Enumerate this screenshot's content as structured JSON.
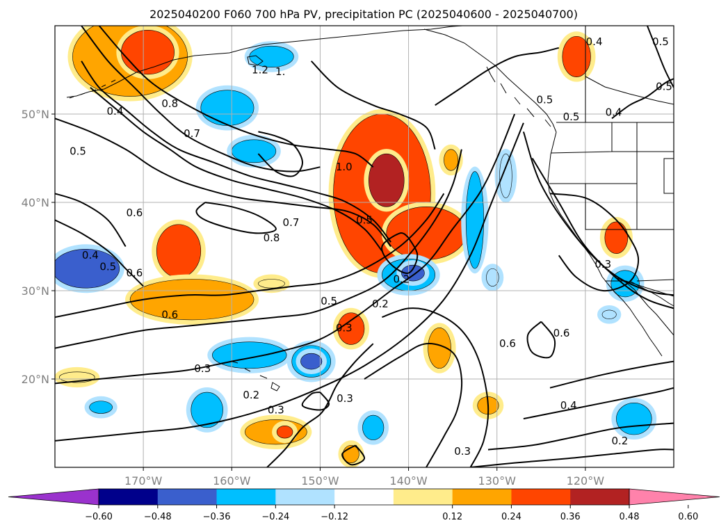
{
  "title": "2025040200 F060 700 hPa PV, precipitation PC (2025040600 - 2025040700)",
  "lon_range": [
    -180,
    -110
  ],
  "lat_range": [
    10,
    60
  ],
  "x_ticks": [
    {
      "lon": -170,
      "label": "170°W"
    },
    {
      "lon": -160,
      "label": "160°W"
    },
    {
      "lon": -150,
      "label": "150°W"
    },
    {
      "lon": -140,
      "label": "140°W"
    },
    {
      "lon": -130,
      "label": "130°W"
    },
    {
      "lon": -120,
      "label": "120°W"
    }
  ],
  "y_ticks": [
    {
      "lat": 50,
      "label": "50°N"
    },
    {
      "lat": 40,
      "label": "40°N"
    },
    {
      "lat": 30,
      "label": "30°N"
    },
    {
      "lat": 20,
      "label": "20°N"
    }
  ],
  "colorbar": {
    "boundaries": [
      -0.72,
      -0.6,
      -0.48,
      -0.36,
      -0.24,
      -0.12,
      0.12,
      0.24,
      0.36,
      0.48,
      0.6,
      0.72
    ],
    "colors": [
      "#9a32cd",
      "#00008b",
      "#3a5fcd",
      "#00bfff",
      "#b0e2ff",
      "#ffffff",
      "#ffec8b",
      "#ffa500",
      "#ff4500",
      "#b22222",
      "#ff82ab"
    ],
    "tick_labels": [
      "−0.60",
      "−0.48",
      "−0.36",
      "−0.24",
      "−0.12",
      "0.12",
      "0.24",
      "0.36",
      "0.48",
      "0.60"
    ],
    "extend": "both"
  },
  "shaded_regions": [
    {
      "lon": -171.5,
      "lat": 56.5,
      "rx": 6.5,
      "ry": 4.5,
      "value": 0.3
    },
    {
      "lon": -169.5,
      "lat": 57.0,
      "rx": 3.0,
      "ry": 2.5,
      "value": 0.4
    },
    {
      "lon": -160.5,
      "lat": 50.7,
      "rx": 3.0,
      "ry": 2.0,
      "value": -0.3
    },
    {
      "lon": -155.5,
      "lat": 56.5,
      "rx": 2.5,
      "ry": 1.2,
      "value": -0.3
    },
    {
      "lon": -157.5,
      "lat": 45.8,
      "rx": 2.5,
      "ry": 1.3,
      "value": -0.3
    },
    {
      "lon": -143.0,
      "lat": 41.0,
      "rx": 5.5,
      "ry": 9.0,
      "value": 0.42
    },
    {
      "lon": -142.5,
      "lat": 42.5,
      "rx": 2.0,
      "ry": 3.0,
      "value": 0.54
    },
    {
      "lon": -138.0,
      "lat": 36.5,
      "rx": 4.5,
      "ry": 3.0,
      "value": 0.42
    },
    {
      "lon": -135.2,
      "lat": 44.8,
      "rx": 0.8,
      "ry": 1.2,
      "value": 0.3
    },
    {
      "lon": -132.5,
      "lat": 38.0,
      "rx": 1.0,
      "ry": 5.5,
      "value": -0.3
    },
    {
      "lon": -129.0,
      "lat": 43.0,
      "rx": 0.7,
      "ry": 2.5,
      "value": -0.2
    },
    {
      "lon": -140.0,
      "lat": 31.8,
      "rx": 3.0,
      "ry": 1.8,
      "value": -0.3
    },
    {
      "lon": -139.5,
      "lat": 32.0,
      "rx": 1.3,
      "ry": 0.9,
      "value": -0.42
    },
    {
      "lon": -130.5,
      "lat": 31.5,
      "rx": 0.7,
      "ry": 1.0,
      "value": -0.2
    },
    {
      "lon": -121.0,
      "lat": 56.5,
      "rx": 1.6,
      "ry": 2.3,
      "value": 0.38
    },
    {
      "lon": -116.5,
      "lat": 36.0,
      "rx": 1.3,
      "ry": 1.8,
      "value": 0.38
    },
    {
      "lon": -115.5,
      "lat": 30.8,
      "rx": 1.6,
      "ry": 1.5,
      "value": -0.3
    },
    {
      "lon": -117.3,
      "lat": 27.3,
      "rx": 0.8,
      "ry": 0.5,
      "value": -0.2
    },
    {
      "lon": -176.5,
      "lat": 32.5,
      "rx": 3.8,
      "ry": 2.2,
      "value": -0.38
    },
    {
      "lon": -166.0,
      "lat": 34.5,
      "rx": 2.5,
      "ry": 3.0,
      "value": 0.38
    },
    {
      "lon": -164.5,
      "lat": 29.0,
      "rx": 7.0,
      "ry": 2.3,
      "value": 0.3
    },
    {
      "lon": -155.5,
      "lat": 30.8,
      "rx": 1.5,
      "ry": 0.5,
      "value": 0.2
    },
    {
      "lon": -158.0,
      "lat": 22.7,
      "rx": 4.2,
      "ry": 1.5,
      "value": -0.3
    },
    {
      "lon": -151.0,
      "lat": 22.0,
      "rx": 2.2,
      "ry": 1.8,
      "value": -0.3
    },
    {
      "lon": -151.0,
      "lat": 22.0,
      "rx": 1.2,
      "ry": 0.9,
      "value": -0.42
    },
    {
      "lon": -146.5,
      "lat": 25.7,
      "rx": 1.5,
      "ry": 1.8,
      "value": 0.36
    },
    {
      "lon": -136.5,
      "lat": 23.5,
      "rx": 1.3,
      "ry": 2.3,
      "value": 0.3
    },
    {
      "lon": -131.0,
      "lat": 17.0,
      "rx": 1.2,
      "ry": 1.0,
      "value": 0.3
    },
    {
      "lon": -177.5,
      "lat": 20.2,
      "rx": 2.0,
      "ry": 0.6,
      "value": 0.2
    },
    {
      "lon": -174.8,
      "lat": 16.8,
      "rx": 1.3,
      "ry": 0.7,
      "value": -0.3
    },
    {
      "lon": -162.8,
      "lat": 16.5,
      "rx": 1.8,
      "ry": 2.0,
      "value": -0.3
    },
    {
      "lon": -155.0,
      "lat": 14.0,
      "rx": 3.5,
      "ry": 1.4,
      "value": 0.3
    },
    {
      "lon": -154.0,
      "lat": 14.0,
      "rx": 0.9,
      "ry": 0.7,
      "value": 0.42
    },
    {
      "lon": -146.5,
      "lat": 11.5,
      "rx": 0.9,
      "ry": 1.0,
      "value": 0.3
    },
    {
      "lon": -144.0,
      "lat": 14.5,
      "rx": 1.2,
      "ry": 1.4,
      "value": -0.3
    },
    {
      "lon": -114.5,
      "lat": 15.5,
      "rx": 2.0,
      "ry": 1.8,
      "value": -0.3
    }
  ],
  "contours": [
    {
      "lons": [
        -177,
        -174,
        -171,
        -168,
        -165,
        -161,
        -157,
        -153,
        -150
      ],
      "lats": [
        60,
        56,
        53,
        50,
        47.5,
        45.5,
        44,
        43.5,
        44
      ],
      "level": "1.0"
    },
    {
      "lons": [
        -175,
        -172,
        -169,
        -165,
        -161,
        -157,
        -153,
        -149,
        -146,
        -144
      ],
      "lats": [
        60,
        56.5,
        53.5,
        51,
        49,
        47.5,
        46.5,
        46,
        45.5,
        44
      ],
      "level": "1.2"
    },
    {
      "lons": [
        -180,
        -176,
        -172,
        -169,
        -166,
        -163,
        -159,
        -155,
        -151,
        -147,
        -144,
        -142
      ],
      "lats": [
        49.5,
        48,
        46,
        44,
        42.5,
        41.5,
        40.5,
        40,
        39.5,
        39,
        37.5,
        35
      ],
      "level": "0.6"
    },
    {
      "lons": [
        -176,
        -173,
        -170,
        -167,
        -164,
        -160,
        -156,
        -152,
        -148,
        -145,
        -143
      ],
      "lats": [
        53,
        50.5,
        48,
        46,
        44,
        42.5,
        41.5,
        40.5,
        39,
        37,
        34.5
      ],
      "level": "0.7"
    },
    {
      "lons": [
        -177,
        -175,
        -172,
        -169,
        -166,
        -162,
        -158,
        -154,
        -150,
        -147,
        -144,
        -142
      ],
      "lats": [
        56,
        53,
        50.5,
        48,
        46,
        44.5,
        43,
        42,
        41,
        40,
        38,
        35.5
      ],
      "level": "0.8"
    },
    {
      "lons": [
        -163,
        -160,
        -157,
        -155,
        -157,
        -160,
        -163,
        -164,
        -163
      ],
      "lats": [
        40,
        39.5,
        38.5,
        37,
        36.5,
        37,
        38,
        39,
        40
      ],
      "level": "0.8"
    },
    {
      "lons": [
        -180,
        -175,
        -170,
        -165,
        -161,
        -157,
        -153,
        -149,
        -145,
        -141,
        -138,
        -136
      ],
      "lats": [
        27,
        28,
        29,
        29.5,
        29.5,
        30,
        30.5,
        31,
        32.5,
        35,
        38,
        41
      ],
      "level": "0.5"
    },
    {
      "lons": [
        -180,
        -175,
        -170,
        -165,
        -160,
        -155,
        -151,
        -147,
        -143,
        -140,
        -137,
        -135,
        -134
      ],
      "lats": [
        23.5,
        24.5,
        25.5,
        26,
        26.5,
        27,
        27.5,
        29,
        31,
        34,
        38,
        42,
        46
      ],
      "level": "0.3"
    },
    {
      "lons": [
        -180,
        -175,
        -170,
        -165,
        -160,
        -155,
        -150,
        -146,
        -142,
        -138,
        -135,
        -132,
        -130,
        -128
      ],
      "lats": [
        19.5,
        20,
        20.5,
        21,
        22,
        23,
        24.5,
        27,
        30,
        33,
        37,
        41,
        45,
        50
      ],
      "level": "0.2"
    },
    {
      "lons": [
        -180,
        -175,
        -170,
        -165,
        -160,
        -155,
        -150,
        -145,
        -140,
        -136,
        -133,
        -131,
        -129,
        -127
      ],
      "lats": [
        13,
        13.5,
        14,
        14.5,
        15.5,
        17,
        19,
        21.5,
        25,
        29,
        34,
        39,
        44,
        49
      ],
      "level": ""
    },
    {
      "lons": [
        -156,
        -154,
        -152,
        -150,
        -149,
        -148,
        -146,
        -144
      ],
      "lats": [
        10,
        12,
        14.5,
        16,
        17.5,
        19.5,
        22,
        24
      ],
      "level": "0.3"
    },
    {
      "lons": [
        -145,
        -141,
        -138,
        -135,
        -134,
        -134.5,
        -136,
        -138
      ],
      "lats": [
        20,
        22.5,
        24,
        23,
        20,
        16.5,
        13.5,
        10
      ],
      "level": ""
    },
    {
      "lons": [
        -143,
        -140,
        -137,
        -134,
        -132,
        -131,
        -131.5,
        -133
      ],
      "lats": [
        27,
        28,
        27.5,
        25.5,
        22,
        17,
        13,
        10
      ],
      "level": "0.2"
    },
    {
      "lons": [
        -124,
        -118,
        -113,
        -110
      ],
      "lats": [
        19,
        20.5,
        21.5,
        22
      ],
      "level": "0.6"
    },
    {
      "lons": [
        -127,
        -122,
        -117,
        -112,
        -110
      ],
      "lats": [
        15.5,
        16.5,
        17.5,
        18.5,
        19
      ],
      "level": "0.4"
    },
    {
      "lons": [
        -131,
        -126,
        -121,
        -116,
        -110
      ],
      "lats": [
        12,
        12.5,
        13.5,
        14.5,
        15
      ],
      "level": "0.2"
    },
    {
      "lons": [
        -133,
        -128,
        -122,
        -117,
        -112,
        -110
      ],
      "lats": [
        10,
        10.5,
        11,
        11.5,
        12,
        12
      ],
      "level": "0.3"
    },
    {
      "lons": [
        -124,
        -120,
        -117,
        -115,
        -114,
        -115,
        -118,
        -121,
        -123
      ],
      "lats": [
        41,
        40.5,
        38.5,
        36,
        33.5,
        31,
        30,
        31.5,
        34
      ],
      "level": "0.3"
    },
    {
      "lons": [
        -126,
        -123,
        -120,
        -116,
        -113,
        -110
      ],
      "lats": [
        45,
        40,
        35,
        31,
        29,
        28
      ],
      "level": ""
    },
    {
      "lons": [
        -127,
        -125,
        -121,
        -117,
        -113,
        -110
      ],
      "lats": [
        48,
        42,
        36,
        32,
        30,
        29.5
      ],
      "level": "0.6"
    },
    {
      "lons": [
        -151,
        -148,
        -144,
        -141,
        -138,
        -137
      ],
      "lats": [
        56,
        53,
        51,
        50,
        48.5,
        46
      ],
      "level": ""
    },
    {
      "lons": [
        -137,
        -134,
        -131,
        -128,
        -125,
        -123
      ],
      "lats": [
        51,
        53,
        55,
        56.5,
        57,
        57.5
      ],
      "level": "0.5"
    },
    {
      "lons": [
        -117,
        -115,
        -113,
        -111,
        -110
      ],
      "lats": [
        49.5,
        51,
        52,
        53.5,
        54
      ],
      "level": "0.4"
    },
    {
      "lons": [
        -113,
        -112,
        -111,
        -110
      ],
      "lats": [
        60,
        57.5,
        55,
        53
      ],
      "level": "0.5"
    },
    {
      "lons": [
        -180,
        -177,
        -174,
        -172
      ],
      "lats": [
        41,
        40,
        38,
        35
      ],
      "level": "0.4"
    },
    {
      "lons": [
        -180,
        -177,
        -174,
        -172,
        -170
      ],
      "lats": [
        38,
        36.5,
        34.5,
        32.5,
        30.5
      ],
      "level": "0.5"
    },
    {
      "lons": [
        -157,
        -155,
        -153,
        -152,
        -153,
        -155,
        -157
      ],
      "lats": [
        48,
        47.5,
        46.5,
        44.5,
        43,
        43.5,
        45.5
      ],
      "level": ""
    },
    {
      "lons": [
        -140,
        -139,
        -140,
        -142,
        -143,
        -141,
        -140
      ],
      "lats": [
        36,
        34,
        32,
        33,
        35,
        36.5,
        36
      ],
      "level": "0.2"
    },
    {
      "lons": [
        -150,
        -149,
        -150,
        -152,
        -151,
        -150
      ],
      "lats": [
        18.5,
        17.2,
        16.5,
        17,
        18.3,
        18.5
      ],
      "level": ""
    },
    {
      "lons": [
        -146,
        -145,
        -146.5,
        -147.5,
        -146
      ],
      "lats": [
        12.5,
        11,
        10.3,
        11.5,
        12.5
      ],
      "level": ""
    },
    {
      "lons": [
        -125,
        -123.5,
        -124,
        -126,
        -126.5,
        -125
      ],
      "lats": [
        26.5,
        24.5,
        22.5,
        23,
        25,
        26.5
      ],
      "level": "0.6"
    }
  ],
  "contour_labels": [
    {
      "lon": -156.8,
      "lat": 55.0,
      "text": "1.2"
    },
    {
      "lon": -154.5,
      "lat": 54.8,
      "text": "1."
    },
    {
      "lon": -173.2,
      "lat": 50.3,
      "text": "0.4"
    },
    {
      "lon": -167.0,
      "lat": 51.2,
      "text": "0.8"
    },
    {
      "lon": -164.5,
      "lat": 47.8,
      "text": "0.7"
    },
    {
      "lon": -177.4,
      "lat": 45.8,
      "text": "0.5"
    },
    {
      "lon": -147.3,
      "lat": 44.0,
      "text": "1.0"
    },
    {
      "lon": -171.0,
      "lat": 38.8,
      "text": "0.6"
    },
    {
      "lon": -145.0,
      "lat": 38.0,
      "text": "0.5"
    },
    {
      "lon": -153.3,
      "lat": 37.7,
      "text": "0.7"
    },
    {
      "lon": -155.5,
      "lat": 36.0,
      "text": "0.8"
    },
    {
      "lon": -176.0,
      "lat": 34.0,
      "text": "0.4"
    },
    {
      "lon": -174.0,
      "lat": 32.7,
      "text": "0.5"
    },
    {
      "lon": -171.0,
      "lat": 32.0,
      "text": "0.6"
    },
    {
      "lon": -149.0,
      "lat": 28.8,
      "text": "0.5"
    },
    {
      "lon": -167.0,
      "lat": 27.3,
      "text": "0.6"
    },
    {
      "lon": -147.3,
      "lat": 25.8,
      "text": "0.3"
    },
    {
      "lon": -140.8,
      "lat": 31.3,
      "text": "0.2"
    },
    {
      "lon": -143.2,
      "lat": 28.5,
      "text": "0.2"
    },
    {
      "lon": -128.8,
      "lat": 24.0,
      "text": "0.6"
    },
    {
      "lon": -122.7,
      "lat": 25.2,
      "text": "0.6"
    },
    {
      "lon": -163.3,
      "lat": 21.2,
      "text": "0.3"
    },
    {
      "lon": -157.8,
      "lat": 18.2,
      "text": "0.2"
    },
    {
      "lon": -155.0,
      "lat": 16.5,
      "text": "0.3"
    },
    {
      "lon": -147.2,
      "lat": 17.8,
      "text": "0.3"
    },
    {
      "lon": -133.9,
      "lat": 11.8,
      "text": "0.3"
    },
    {
      "lon": -121.9,
      "lat": 17.0,
      "text": "0.4"
    },
    {
      "lon": -116.1,
      "lat": 13.0,
      "text": "0.2"
    },
    {
      "lon": -121.6,
      "lat": 49.7,
      "text": "0.5"
    },
    {
      "lon": -124.6,
      "lat": 51.6,
      "text": "0.5"
    },
    {
      "lon": -116.8,
      "lat": 50.2,
      "text": "0.4"
    },
    {
      "lon": -119.0,
      "lat": 58.2,
      "text": "0.4"
    },
    {
      "lon": -111.5,
      "lat": 58.2,
      "text": "0.5"
    },
    {
      "lon": -111.1,
      "lat": 53.1,
      "text": "0.5"
    },
    {
      "lon": -118.0,
      "lat": 33.0,
      "text": "0.3"
    }
  ]
}
